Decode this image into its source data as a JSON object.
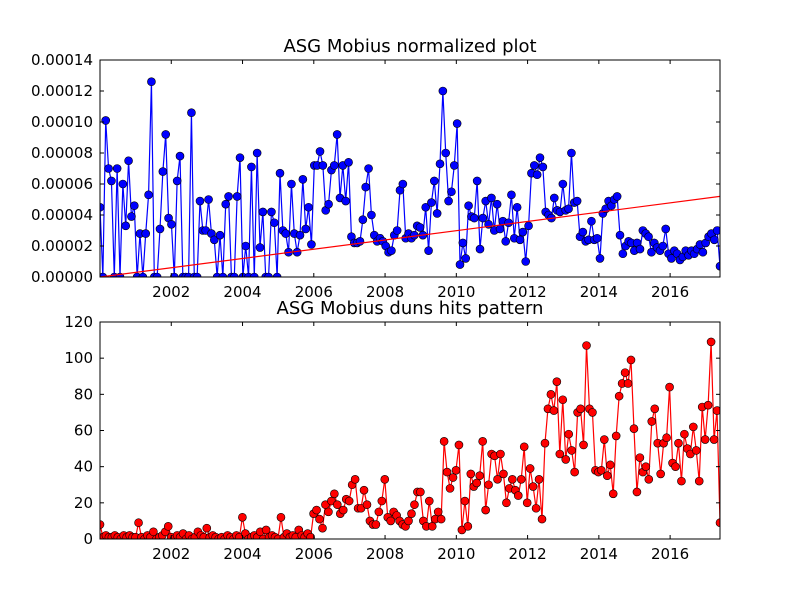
{
  "chart_data": [
    {
      "type": "line",
      "title": "ASG Mobius normalized plot",
      "xlabel": "",
      "ylabel": "",
      "xlim": [
        2000.0,
        2017.4
      ],
      "ylim": [
        0,
        0.00014
      ],
      "x_ticks": [
        {
          "value": 2002,
          "label": "2002"
        },
        {
          "value": 2004,
          "label": "2004"
        },
        {
          "value": 2006,
          "label": "2006"
        },
        {
          "value": 2008,
          "label": "2008"
        },
        {
          "value": 2010,
          "label": "2010"
        },
        {
          "value": 2012,
          "label": "2012"
        },
        {
          "value": 2014,
          "label": "2014"
        },
        {
          "value": 2016,
          "label": "2016"
        }
      ],
      "y_ticks": [
        {
          "value": 0,
          "label": "0.00000"
        },
        {
          "value": 2e-05,
          "label": "0.00002"
        },
        {
          "value": 4e-05,
          "label": "0.00004"
        },
        {
          "value": 6e-05,
          "label": "0.00006"
        },
        {
          "value": 8e-05,
          "label": "0.00008"
        },
        {
          "value": 0.0001,
          "label": "0.00010"
        },
        {
          "value": 0.00012,
          "label": "0.00012"
        },
        {
          "value": 0.00014,
          "label": "0.00014"
        }
      ],
      "grid": false,
      "legend": "none",
      "series": [
        {
          "color": "#0000ff",
          "marker": "circle",
          "values": [
            4.5e-05,
            0.0,
            0.000101,
            7e-05,
            6.2e-05,
            0.0,
            7e-05,
            0.0,
            6e-05,
            3.3e-05,
            7.5e-05,
            3.9e-05,
            4.6e-05,
            0.0,
            2.8e-05,
            0.0,
            2.8e-05,
            5.3e-05,
            0.000126,
            0.0,
            0.0,
            3.1e-05,
            6.8e-05,
            9.2e-05,
            3.8e-05,
            3.4e-05,
            0.0,
            6.2e-05,
            7.8e-05,
            0.0,
            0.0,
            0.0,
            0.000106,
            0.0,
            0.0,
            4.9e-05,
            3e-05,
            3e-05,
            5e-05,
            2.8e-05,
            2.4e-05,
            0.0,
            2.7e-05,
            0.0,
            4.7e-05,
            5.2e-05,
            0.0,
            0.0,
            5.2e-05,
            7.7e-05,
            0.0,
            2e-05,
            0.0,
            7.1e-05,
            0.0,
            8e-05,
            1.9e-05,
            4.2e-05,
            0.0,
            0.0,
            4.2e-05,
            3.5e-05,
            0.0,
            6.7e-05,
            3e-05,
            2.8e-05,
            1.6e-05,
            6e-05,
            2.8e-05,
            1.6e-05,
            2.7e-05,
            6.3e-05,
            3.1e-05,
            4.5e-05,
            2.1e-05,
            7.2e-05,
            7.2e-05,
            8.1e-05,
            7.2e-05,
            4.3e-05,
            4.7e-05,
            6.9e-05,
            7.2e-05,
            9.2e-05,
            5.1e-05,
            7.2e-05,
            4.9e-05,
            7.4e-05,
            2.6e-05,
            2.2e-05,
            2.2e-05,
            2.3e-05,
            3.7e-05,
            5.8e-05,
            7e-05,
            4e-05,
            2.7e-05,
            2.3e-05,
            2.5e-05,
            2.3e-05,
            2e-05,
            1.6e-05,
            1.7e-05,
            2.7e-05,
            3e-05,
            5.6e-05,
            6e-05,
            2.5e-05,
            2.8e-05,
            2.5e-05,
            2.7e-05,
            3.3e-05,
            3.2e-05,
            2.7e-05,
            4.5e-05,
            1.7e-05,
            4.8e-05,
            6.2e-05,
            4.1e-05,
            7.3e-05,
            0.00012,
            8e-05,
            4.9e-05,
            5.5e-05,
            7.2e-05,
            9.9e-05,
            8e-06,
            2.2e-05,
            1.2e-05,
            4.6e-05,
            3.9e-05,
            3.8e-05,
            6.2e-05,
            1.8e-05,
            3.8e-05,
            4.9e-05,
            3.4e-05,
            5.1e-05,
            3e-05,
            4.7e-05,
            3.1e-05,
            3.6e-05,
            2.3e-05,
            3.5e-05,
            5.3e-05,
            2.5e-05,
            4.5e-05,
            2.4e-05,
            2.9e-05,
            1e-05,
            3.3e-05,
            6.7e-05,
            7.2e-05,
            6.6e-05,
            7.7e-05,
            7.1e-05,
            4.2e-05,
            4e-05,
            3.8e-05,
            5.1e-05,
            4.3e-05,
            4.2e-05,
            6e-05,
            4.3e-05,
            4.4e-05,
            8e-05,
            4.8e-05,
            4.9e-05,
            2.6e-05,
            2.9e-05,
            2.3e-05,
            2.4e-05,
            3.6e-05,
            2.4e-05,
            2.5e-05,
            1.2e-05,
            4.1e-05,
            4.4e-05,
            4.9e-05,
            4.6e-05,
            5e-05,
            5.2e-05,
            2.7e-05,
            1.5e-05,
            2e-05,
            2.3e-05,
            2.2e-05,
            1.7e-05,
            2.2e-05,
            1.8e-05,
            3e-05,
            2.8e-05,
            2.6e-05,
            1.6e-05,
            2.2e-05,
            1.9e-05,
            1.7e-05,
            2e-05,
            3.1e-05,
            1.5e-05,
            1.2e-05,
            1.7e-05,
            1.5e-05,
            1.1e-05,
            1.3e-05,
            1.7e-05,
            1.4e-05,
            1.7e-05,
            1.5e-05,
            1.8e-05,
            2.1e-05,
            1.6e-05,
            2.2e-05,
            2.6e-05,
            2.8e-05,
            2.4e-05,
            3e-05,
            7e-06
          ]
        }
      ],
      "trend_line": {
        "color": "#ff0000",
        "x": [
          2000.0,
          2017.4
        ],
        "y": [
          0.0,
          5.2e-05
        ]
      }
    },
    {
      "type": "line",
      "title": "ASG Mobius duns hits pattern",
      "xlabel": "",
      "ylabel": "",
      "xlim": [
        2000.0,
        2017.4
      ],
      "ylim": [
        0,
        120
      ],
      "x_ticks": [
        {
          "value": 2002,
          "label": "2002"
        },
        {
          "value": 2004,
          "label": "2004"
        },
        {
          "value": 2006,
          "label": "2006"
        },
        {
          "value": 2008,
          "label": "2008"
        },
        {
          "value": 2010,
          "label": "2010"
        },
        {
          "value": 2012,
          "label": "2012"
        },
        {
          "value": 2014,
          "label": "2014"
        },
        {
          "value": 2016,
          "label": "2016"
        }
      ],
      "y_ticks": [
        {
          "value": 0,
          "label": "0"
        },
        {
          "value": 20,
          "label": "20"
        },
        {
          "value": 40,
          "label": "40"
        },
        {
          "value": 60,
          "label": "60"
        },
        {
          "value": 80,
          "label": "80"
        },
        {
          "value": 100,
          "label": "100"
        },
        {
          "value": 120,
          "label": "120"
        }
      ],
      "grid": false,
      "legend": "none",
      "series": [
        {
          "color": "#ff0000",
          "marker": "circle",
          "values": [
            8,
            1,
            2,
            1,
            1,
            2,
            1,
            0,
            2,
            1,
            2,
            1,
            1,
            9,
            1,
            0,
            2,
            1,
            4,
            0,
            1,
            2,
            4,
            7,
            1,
            0,
            2,
            1,
            3,
            0,
            2,
            0,
            1,
            4,
            2,
            1,
            6,
            1,
            2,
            1,
            0,
            1,
            0,
            2,
            1,
            0,
            2,
            1,
            12,
            3,
            0,
            1,
            2,
            1,
            4,
            0,
            5,
            1,
            2,
            1,
            0,
            12,
            1,
            3,
            1,
            2,
            1,
            5,
            2,
            1,
            3,
            1,
            14,
            16,
            11,
            6,
            19,
            15,
            21,
            25,
            19,
            14,
            16,
            22,
            21,
            30,
            33,
            17,
            17,
            27,
            19,
            10,
            8,
            8,
            15,
            21,
            33,
            12,
            10,
            15,
            13,
            10,
            8,
            7,
            10,
            14,
            19,
            26,
            26,
            10,
            7,
            21,
            7,
            11,
            15,
            11,
            54,
            37,
            28,
            34,
            38,
            52,
            5,
            21,
            7,
            36,
            29,
            31,
            35,
            54,
            16,
            30,
            47,
            46,
            33,
            47,
            36,
            20,
            28,
            33,
            27,
            24,
            33,
            51,
            20,
            39,
            29,
            17,
            33,
            11,
            53,
            72,
            80,
            71,
            87,
            47,
            77,
            44,
            58,
            49,
            37,
            70,
            72,
            52,
            107,
            72,
            70,
            38,
            37,
            38,
            55,
            35,
            41,
            25,
            57,
            79,
            86,
            92,
            86,
            99,
            61,
            26,
            45,
            37,
            40,
            33,
            65,
            72,
            53,
            36,
            53,
            56,
            84,
            42,
            40,
            53,
            32,
            58,
            50,
            47,
            62,
            49,
            32,
            73,
            55,
            74,
            109,
            55,
            71,
            9
          ]
        }
      ]
    }
  ]
}
